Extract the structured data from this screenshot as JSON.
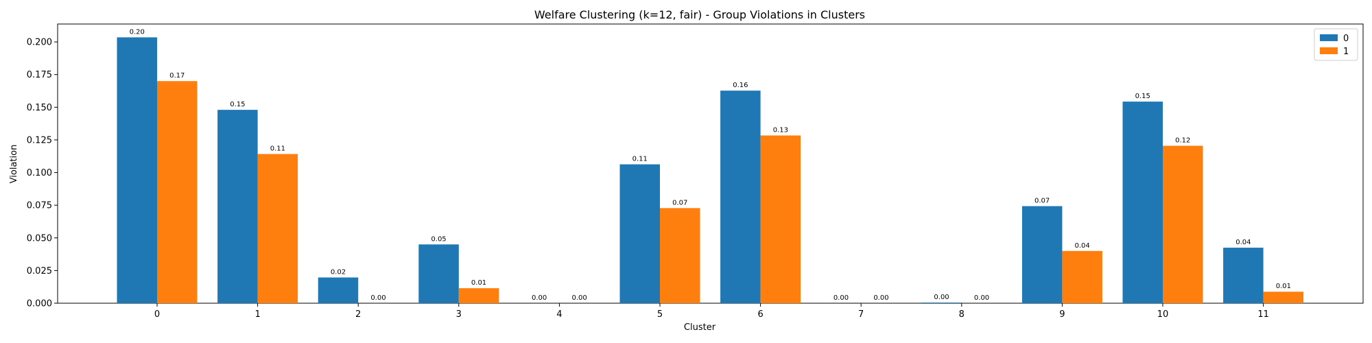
{
  "chart_data": {
    "type": "bar",
    "title": "Welfare Clustering (k=12, fair) - Group Violations in Clusters",
    "xlabel": "Cluster",
    "ylabel": "Violation",
    "categories": [
      "0",
      "1",
      "2",
      "3",
      "4",
      "5",
      "6",
      "7",
      "8",
      "9",
      "10",
      "11"
    ],
    "series": [
      {
        "name": "0",
        "color": "#1f77b4",
        "values": [
          0.2035,
          0.148,
          0.0197,
          0.045,
          0.0,
          0.1063,
          0.1627,
          0.0,
          0.0005,
          0.0743,
          0.1543,
          0.0425
        ],
        "labels": [
          "0.20",
          "0.15",
          "0.02",
          "0.05",
          "0.00",
          "0.11",
          "0.16",
          "0.00",
          "0.00",
          "0.07",
          "0.15",
          "0.04"
        ]
      },
      {
        "name": "1",
        "color": "#ff7f0e",
        "values": [
          0.17,
          0.1142,
          0.0,
          0.0115,
          0.0,
          0.0728,
          0.1284,
          0.0,
          0.0,
          0.04,
          0.1205,
          0.0088
        ],
        "labels": [
          "0.17",
          "0.11",
          "0.00",
          "0.01",
          "0.00",
          "0.07",
          "0.13",
          "0.00",
          "0.00",
          "0.04",
          "0.12",
          "0.01"
        ]
      }
    ],
    "yticks": [
      "0.000",
      "0.025",
      "0.050",
      "0.075",
      "0.100",
      "0.125",
      "0.150",
      "0.175",
      "0.200"
    ],
    "ylim": [
      0,
      0.2137
    ],
    "grid": false,
    "legend_position": "top-right"
  }
}
